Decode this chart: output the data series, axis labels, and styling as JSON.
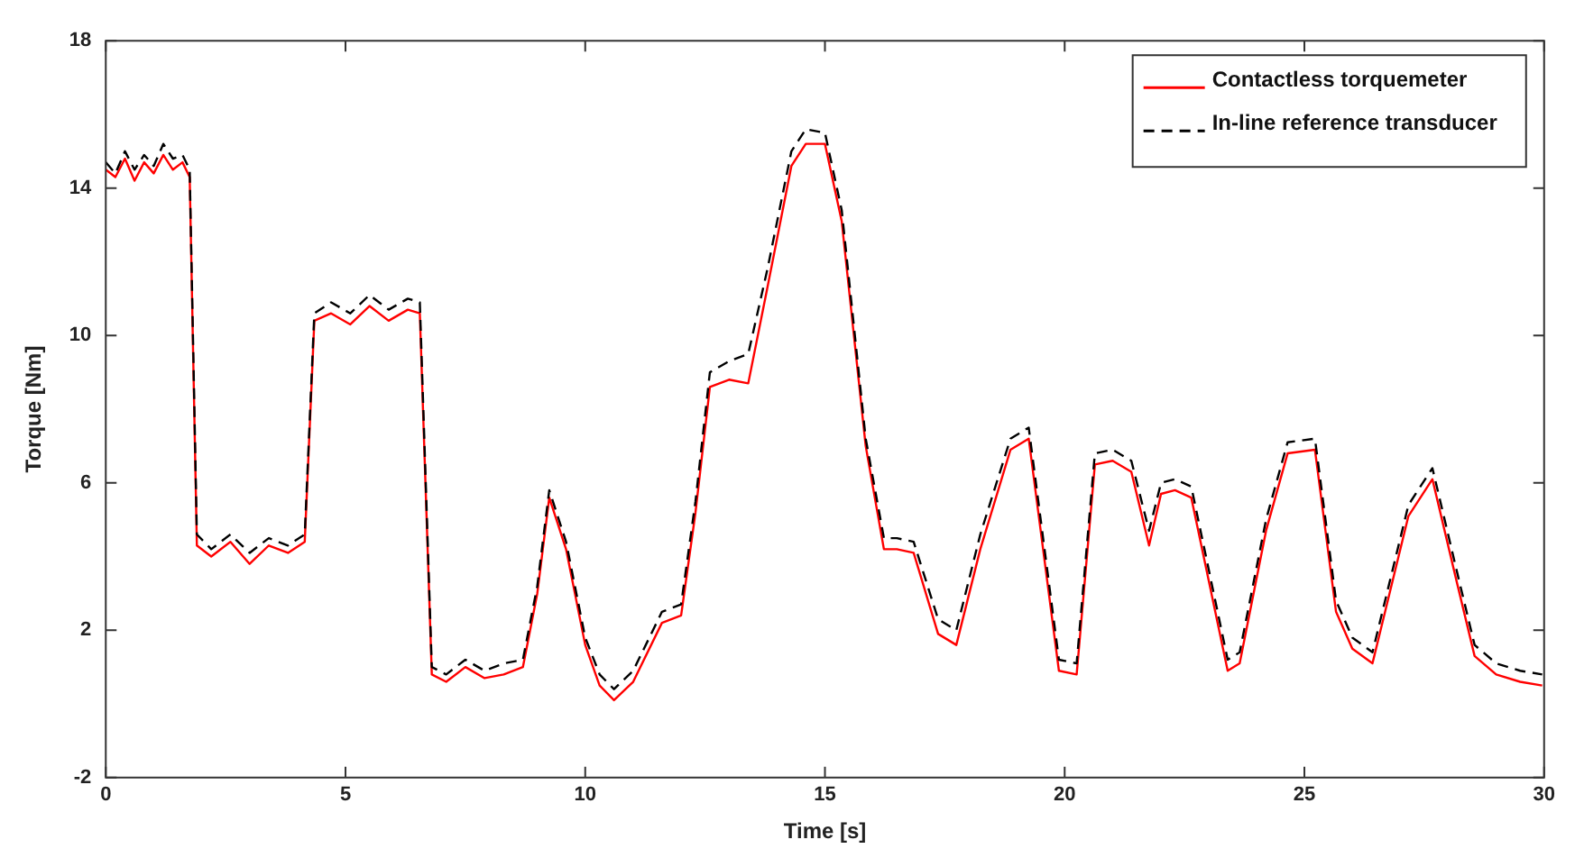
{
  "chart_data": {
    "type": "line",
    "xlabel": "Time [s]",
    "ylabel": "Torque [Nm]",
    "xlim": [
      0,
      30
    ],
    "ylim": [
      -2,
      18
    ],
    "xticks": [
      0,
      5,
      10,
      15,
      20,
      25,
      30
    ],
    "yticks": [
      -2,
      2,
      6,
      10,
      14,
      18
    ],
    "grid": false,
    "legend": "top right",
    "marker": "none",
    "x": [
      0,
      0.2,
      0.4,
      0.6,
      0.8,
      1.0,
      1.2,
      1.4,
      1.6,
      1.75,
      1.9,
      2.2,
      2.6,
      3.0,
      3.4,
      3.8,
      4.15,
      4.35,
      4.7,
      5.1,
      5.5,
      5.9,
      6.3,
      6.55,
      6.8,
      7.1,
      7.5,
      7.9,
      8.3,
      8.7,
      9.0,
      9.25,
      9.6,
      10.0,
      10.3,
      10.6,
      11.0,
      11.6,
      12.0,
      12.3,
      12.6,
      13.0,
      13.4,
      13.8,
      14.3,
      14.6,
      15.0,
      15.35,
      15.85,
      16.23,
      16.5,
      16.85,
      17.36,
      17.74,
      18.24,
      18.87,
      19.25,
      19.88,
      20.25,
      20.63,
      21.0,
      21.39,
      21.76,
      22.01,
      22.3,
      22.64,
      23.4,
      23.65,
      24.2,
      24.65,
      25.22,
      25.66,
      26.0,
      26.42,
      27.17,
      27.67,
      28.18,
      28.55,
      29.0,
      29.5,
      29.96
    ],
    "series": [
      {
        "name": "Contactless torquemeter",
        "color": "#ff0000",
        "line_style": "solid",
        "values": [
          14.5,
          14.3,
          14.8,
          14.2,
          14.7,
          14.4,
          14.9,
          14.5,
          14.7,
          14.3,
          4.3,
          4.0,
          4.4,
          3.8,
          4.3,
          4.1,
          4.4,
          10.4,
          10.6,
          10.3,
          10.8,
          10.4,
          10.7,
          10.6,
          0.8,
          0.6,
          1.0,
          0.7,
          0.8,
          1.0,
          3.0,
          5.6,
          4.2,
          1.6,
          0.5,
          0.1,
          0.6,
          2.2,
          2.4,
          5.2,
          8.6,
          8.8,
          8.7,
          11.3,
          14.6,
          15.2,
          15.2,
          13.1,
          7.0,
          4.2,
          4.2,
          4.1,
          1.9,
          1.6,
          4.2,
          6.9,
          7.2,
          0.9,
          0.8,
          6.5,
          6.6,
          6.3,
          4.3,
          5.7,
          5.8,
          5.6,
          0.9,
          1.1,
          4.7,
          6.8,
          6.9,
          2.5,
          1.5,
          1.1,
          5.1,
          6.1,
          3.3,
          1.3,
          0.8,
          0.6,
          0.5
        ]
      },
      {
        "name": "In-line reference transducer",
        "color": "#000000",
        "line_style": "dashed",
        "values": [
          14.7,
          14.4,
          15.0,
          14.5,
          14.9,
          14.6,
          15.2,
          14.8,
          14.9,
          14.5,
          4.6,
          4.2,
          4.6,
          4.1,
          4.5,
          4.3,
          4.6,
          10.6,
          10.9,
          10.6,
          11.1,
          10.7,
          11.0,
          10.9,
          1.0,
          0.8,
          1.2,
          0.9,
          1.1,
          1.2,
          3.2,
          5.8,
          4.4,
          1.8,
          0.8,
          0.4,
          0.9,
          2.5,
          2.7,
          5.5,
          9.0,
          9.3,
          9.5,
          11.8,
          15.0,
          15.6,
          15.5,
          13.4,
          7.2,
          4.5,
          4.5,
          4.4,
          2.3,
          2.0,
          4.6,
          7.2,
          7.5,
          1.2,
          1.1,
          6.8,
          6.9,
          6.6,
          4.7,
          6.0,
          6.1,
          5.9,
          1.2,
          1.4,
          5.0,
          7.1,
          7.2,
          2.8,
          1.8,
          1.4,
          5.4,
          6.4,
          3.6,
          1.6,
          1.1,
          0.9,
          0.8
        ]
      }
    ]
  }
}
